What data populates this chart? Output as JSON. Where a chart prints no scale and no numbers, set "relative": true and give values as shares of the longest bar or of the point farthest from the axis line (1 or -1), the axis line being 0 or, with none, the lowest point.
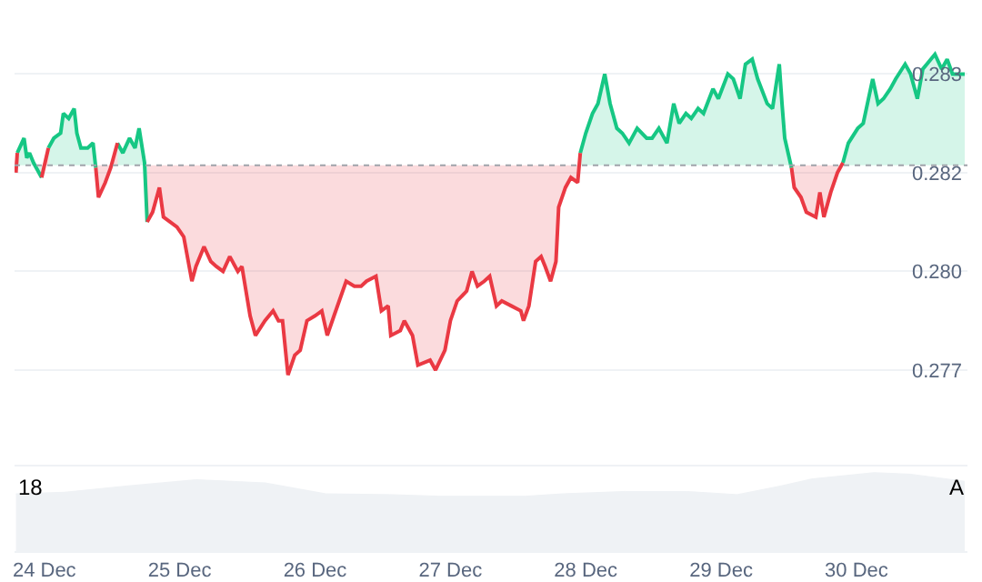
{
  "chart_data": [
    {
      "type": "area",
      "xlim": [
        "--12-23T18:43",
        "--12-30T19:41"
      ],
      "xticks": [
        {
          "value": "--12-24",
          "label": "24 Dec"
        },
        {
          "value": "--12-25",
          "label": "25 Dec"
        },
        {
          "value": "--12-26",
          "label": "26 Dec"
        },
        {
          "value": "--12-27",
          "label": "27 Dec"
        },
        {
          "value": "--12-28",
          "label": "28 Dec"
        },
        {
          "value": "--12-29",
          "label": "29 Dec"
        },
        {
          "value": "--12-30",
          "label": "30 Dec"
        }
      ],
      "ylim": [
        0.2756,
        0.285
      ],
      "yticks": [
        {
          "value": 0.2835,
          "label": "0.283"
        },
        {
          "value": 0.2815,
          "label": "0.282"
        },
        {
          "value": 0.2795,
          "label": "0.280"
        },
        {
          "value": 0.2775,
          "label": "0.277"
        }
      ],
      "grid": "y",
      "tick_labels": "y",
      "ref_lines": [
        {
          "axis": "y",
          "value": 0.28165,
          "color": "#a0a4ab",
          "line_style": "dotted"
        }
      ],
      "series": [
        {
          "color": "#16c784",
          "x": [
            "--12-23T19:12",
            "--12-23T20:24",
            "--12-23T20:53",
            "--12-23T21:22",
            "--12-23T22:05",
            "--12-23T23:31",
            "--12-24T00:00",
            "--12-24T00:43",
            "--12-24T01:41",
            "--12-24T02:53",
            "--12-24T03:22",
            "--12-24T04:19",
            "--12-24T05:17",
            "--12-24T05:46",
            "--12-24T06:29",
            "--12-24T07:41",
            "--12-24T08:38",
            "--12-24T09:07",
            "--12-24T12:00",
            "--12-24T12:58",
            "--12-24T13:55",
            "--12-24T15:07",
            "--12-24T16:05",
            "--12-24T16:48",
            "--12-24T17:46",
            "--12-24T18:14",
            "--12-27T22:48",
            "--12-27T23:02",
            "--12-28T00:00",
            "--12-28T01:12",
            "--12-28T02:10",
            "--12-28T03:22",
            "--12-28T04:19",
            "--12-28T05:31",
            "--12-28T06:29",
            "--12-28T07:41",
            "--12-28T09:07",
            "--12-28T10:48",
            "--12-28T11:46",
            "--12-28T12:58",
            "--12-28T14:24",
            "--12-28T15:36",
            "--12-28T16:34",
            "--12-28T17:46",
            "--12-28T18:43",
            "--12-28T19:55",
            "--12-28T20:53",
            "--12-28T22:34",
            "--12-28T23:31",
            "--12-29T01:12",
            "--12-29T02:10",
            "--12-29T03:22",
            "--12-29T04:19",
            "--12-29T05:31",
            "--12-29T06:29",
            "--12-29T08:10",
            "--12-29T09:07",
            "--12-29T10:19",
            "--12-29T10:48",
            "--12-29T11:17",
            "--12-29T12:29",
            "--12-29T21:07",
            "--12-29T21:36",
            "--12-29T22:34",
            "--12-30T00:14",
            "--12-30T01:12",
            "--12-30T02:53",
            "--12-30T03:50",
            "--12-30T04:48",
            "--12-30T06:00",
            "--12-30T06:58",
            "--12-30T08:38",
            "--12-30T09:36",
            "--12-30T10:48",
            "--12-30T11:46",
            "--12-30T13:55",
            "--12-30T15:07",
            "--12-30T16:05",
            "--12-30T17:02",
            "--12-30T18:14",
            "--12-30T19:12"
          ],
          "values": [
            0.2819,
            0.2822,
            0.2818,
            0.2819,
            0.2817,
            0.2814,
            null,
            0.282,
            0.2822,
            0.2823,
            0.2827,
            0.2826,
            0.2828,
            0.2823,
            0.282,
            0.282,
            0.2821,
            0.2816,
            null,
            0.2821,
            0.2819,
            0.2822,
            0.282,
            0.2824,
            0.2817,
            0.2805,
            null,
            0.2819,
            0.2823,
            0.2827,
            0.2829,
            0.2835,
            0.2829,
            0.2824,
            0.2823,
            0.2821,
            0.2824,
            0.2822,
            0.2822,
            0.2824,
            0.2821,
            0.2829,
            0.2825,
            0.2827,
            0.2826,
            0.2828,
            0.2827,
            0.2832,
            0.283,
            0.2835,
            0.2834,
            0.283,
            0.2837,
            0.2838,
            0.2834,
            0.2829,
            0.2828,
            0.2837,
            0.2829,
            0.2822,
            0.2816,
            null,
            0.2817,
            0.2821,
            0.2824,
            0.2825,
            0.2834,
            0.2829,
            0.283,
            0.2832,
            0.2834,
            0.2837,
            0.2835,
            0.283,
            0.2836,
            0.2839,
            0.2836,
            0.2838,
            0.2835,
            0.2835,
            0.2835
          ]
        },
        {
          "color": "#ea3943",
          "x": [
            "--12-23T18:58",
            "--12-23T19:12",
            "--12-23T22:48",
            "--12-23T23:31",
            "--12-24T00:43",
            "--12-24T08:53",
            "--12-24T09:07",
            "--12-24T09:36",
            "--12-24T10:48",
            "--12-24T11:46",
            "--12-24T12:58",
            "--12-24T18:00",
            "--12-24T18:14",
            "--12-24T19:12",
            "--12-24T20:24",
            "--12-24T21:07",
            "--12-24T22:19",
            "--12-24T23:31",
            "--12-25T00:43",
            "--12-25T02:10",
            "--12-25T02:53",
            "--12-25T04:19",
            "--12-25T05:31",
            "--12-25T06:29",
            "--12-25T07:41",
            "--12-25T08:53",
            "--12-25T10:19",
            "--12-25T11:02",
            "--12-25T12:29",
            "--12-25T13:26",
            "--12-25T15:07",
            "--12-25T16:34",
            "--12-25T17:31",
            "--12-25T18:14",
            "--12-25T19:12",
            "--12-25T20:24",
            "--12-25T21:22",
            "--12-25T22:34",
            "--12-26T00:00",
            "--12-26T01:12",
            "--12-26T02:10",
            "--12-26T03:22",
            "--12-26T05:31",
            "--12-26T06:58",
            "--12-26T08:10",
            "--12-26T09:07",
            "--12-26T10:48",
            "--12-26T11:46",
            "--12-26T12:58",
            "--12-26T13:26",
            "--12-26T15:07",
            "--12-26T15:50",
            "--12-26T17:17",
            "--12-26T18:14",
            "--12-26T20:24",
            "--12-26T21:22",
            "--12-26T23:02",
            "--12-27T00:00",
            "--12-27T01:12",
            "--12-27T02:53",
            "--12-27T03:50",
            "--12-27T04:48",
            "--12-27T06:00",
            "--12-27T06:58",
            "--12-27T08:10",
            "--12-27T09:07",
            "--12-27T10:48",
            "--12-27T12:29",
            "--12-27T12:58",
            "--12-27T13:55",
            "--12-27T15:07",
            "--12-27T16:05",
            "--12-27T16:48",
            "--12-27T17:46",
            "--12-27T18:43",
            "--12-27T19:12",
            "--12-27T20:24",
            "--12-27T21:22",
            "--12-27T22:34",
            "--12-27T23:02",
            "--12-29T12:00",
            "--12-29T12:29",
            "--12-29T12:58",
            "--12-29T14:10",
            "--12-29T15:07",
            "--12-29T16:48",
            "--12-29T17:31",
            "--12-29T18:14",
            "--12-29T19:26",
            "--12-29T20:38",
            "--12-29T21:36"
          ],
          "values": [
            0.2815,
            0.2819,
            null,
            0.2814,
            0.282,
            null,
            0.2816,
            0.281,
            0.2813,
            0.2816,
            0.2821,
            null,
            0.2805,
            0.2807,
            0.2812,
            0.2806,
            0.2805,
            0.2804,
            0.2802,
            0.2793,
            0.2796,
            0.28,
            0.2797,
            0.2796,
            0.2795,
            0.2798,
            0.2795,
            0.2796,
            0.2786,
            0.2782,
            0.2785,
            0.2787,
            0.2785,
            0.2785,
            0.2774,
            0.2778,
            0.2779,
            0.2785,
            0.2786,
            0.2787,
            0.2782,
            0.2786,
            0.2793,
            0.2792,
            0.2792,
            0.2793,
            0.2794,
            0.2787,
            0.2788,
            0.2782,
            0.2783,
            0.2785,
            0.2782,
            0.2776,
            0.2777,
            0.2775,
            0.2779,
            0.2785,
            0.2789,
            0.2791,
            0.2795,
            0.2792,
            0.2793,
            0.2794,
            0.2788,
            0.2789,
            0.2788,
            0.2787,
            0.2785,
            0.2788,
            0.2797,
            0.2798,
            0.2796,
            0.2793,
            0.2797,
            0.2808,
            0.2812,
            0.2814,
            0.2813,
            0.2819,
            null,
            0.2816,
            0.2812,
            0.281,
            0.2807,
            0.2806,
            0.2811,
            0.2806,
            0.2811,
            0.2815,
            0.2817
          ]
        }
      ]
    },
    {
      "type": "area",
      "relative": true,
      "tick_labels": "x",
      "xlim": [
        "--12-23T18:43",
        "--12-30T19:41"
      ],
      "xticks": [
        {
          "value": "--12-24",
          "label": "24 Dec"
        },
        {
          "value": "--12-25",
          "label": "25 Dec"
        },
        {
          "value": "--12-26",
          "label": "26 Dec"
        },
        {
          "value": "--12-27",
          "label": "27 Dec"
        },
        {
          "value": "--12-28",
          "label": "28 Dec"
        },
        {
          "value": "--12-29",
          "label": "29 Dec"
        },
        {
          "value": "--12-30",
          "label": "30 Dec"
        }
      ],
      "annotations": [
        "18",
        "A"
      ],
      "series": [
        {
          "color": "#eff2f5",
          "x": [
            "--12-23T18:58",
            "--12-24T03:36",
            "--12-24T14:38",
            "--12-25T02:53",
            "--12-25T15:07",
            "--12-26T01:55",
            "--12-26T13:12",
            "--12-26T21:50",
            "--12-27T13:26",
            "--12-27T19:55",
            "--12-28T06:58",
            "--12-28T18:00",
            "--12-29T02:53",
            "--12-29T10:34",
            "--12-29T16:05",
            "--12-30T03:07",
            "--12-30T09:36",
            "--12-30T19:12"
          ],
          "values": [
            0.73,
            0.75,
            0.83,
            0.91,
            0.87,
            0.73,
            0.72,
            0.7,
            0.7,
            0.73,
            0.76,
            0.76,
            0.72,
            0.83,
            0.92,
            1,
            0.98,
            0.89
          ]
        }
      ]
    }
  ]
}
